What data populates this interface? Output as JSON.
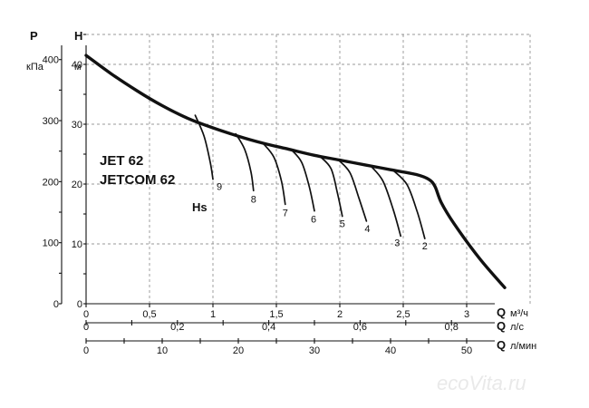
{
  "chart_data": {
    "type": "line",
    "title_lines": [
      "JET 62",
      "JETCOM 62"
    ],
    "left_axes": {
      "pressure": {
        "label": "P",
        "unit": "кПа",
        "ticks": [
          0,
          100,
          200,
          300,
          400
        ]
      },
      "head": {
        "label": "H",
        "unit": "м",
        "ticks": [
          0,
          10,
          20,
          30,
          40
        ],
        "ylim": [
          0,
          45
        ]
      }
    },
    "bottom_axes": {
      "m3h": {
        "label": "Q",
        "unit": "м³/ч",
        "tick_labels": [
          "0",
          "0,5",
          "1",
          "1,5",
          "2",
          "2,5",
          "3"
        ],
        "ticks": [
          0,
          0.5,
          1,
          1.5,
          2,
          2.5,
          3
        ],
        "xlim": [
          0,
          3.5
        ]
      },
      "ls": {
        "label": "Q",
        "unit": "л/с",
        "tick_labels": [
          "0",
          "0,2",
          "0,4",
          "0,6",
          "0,8"
        ],
        "ticks": [
          0,
          0.2,
          0.4,
          0.6,
          0.8
        ]
      },
      "lmin": {
        "label": "Q",
        "unit": "л/мин",
        "tick_labels": [
          "0",
          "10",
          "20",
          "30",
          "40",
          "50"
        ],
        "ticks": [
          0,
          10,
          20,
          30,
          40,
          50
        ]
      }
    },
    "grid": true,
    "series": [
      {
        "role": "main",
        "x": [
          0,
          0.2,
          0.4,
          0.6,
          0.8,
          1.0,
          1.2,
          1.4,
          1.6,
          1.8,
          2.0,
          2.2,
          2.4,
          2.6,
          2.7,
          2.75,
          2.8,
          2.9,
          3.1,
          3.3
        ],
        "y": [
          41.5,
          38.4,
          35.6,
          33.1,
          31.0,
          29.4,
          28.0,
          26.8,
          25.8,
          24.8,
          24.0,
          23.2,
          22.4,
          21.6,
          20.8,
          19.6,
          16.9,
          13.4,
          7.6,
          2.7
        ]
      }
    ],
    "suction_head": {
      "label": "Hs",
      "curves": [
        {
          "name": "9",
          "x": [
            0.86,
            0.93,
            0.98,
            1.0
          ],
          "y": [
            31.5,
            28.0,
            23.5,
            20.8
          ]
        },
        {
          "name": "8",
          "x": [
            1.18,
            1.25,
            1.3,
            1.32
          ],
          "y": [
            28.4,
            25.8,
            22.0,
            18.9
          ]
        },
        {
          "name": "7",
          "x": [
            1.4,
            1.48,
            1.54,
            1.57
          ],
          "y": [
            26.7,
            24.5,
            20.5,
            16.6
          ]
        },
        {
          "name": "6",
          "x": [
            1.62,
            1.7,
            1.76,
            1.8
          ],
          "y": [
            25.7,
            23.6,
            19.5,
            15.5
          ]
        },
        {
          "name": "5",
          "x": [
            1.84,
            1.93,
            1.98,
            2.02
          ],
          "y": [
            24.7,
            22.6,
            18.6,
            14.6
          ]
        },
        {
          "name": "4",
          "x": [
            1.99,
            2.08,
            2.15,
            2.21
          ],
          "y": [
            24.0,
            21.9,
            17.7,
            13.8
          ]
        },
        {
          "name": "3",
          "x": [
            2.25,
            2.34,
            2.42,
            2.48
          ],
          "y": [
            22.9,
            20.5,
            15.8,
            11.3
          ]
        },
        {
          "name": "2",
          "x": [
            2.42,
            2.53,
            2.61,
            2.67
          ],
          "y": [
            22.3,
            19.9,
            15.4,
            10.9
          ]
        }
      ]
    }
  },
  "watermark": "ecoVita.ru"
}
